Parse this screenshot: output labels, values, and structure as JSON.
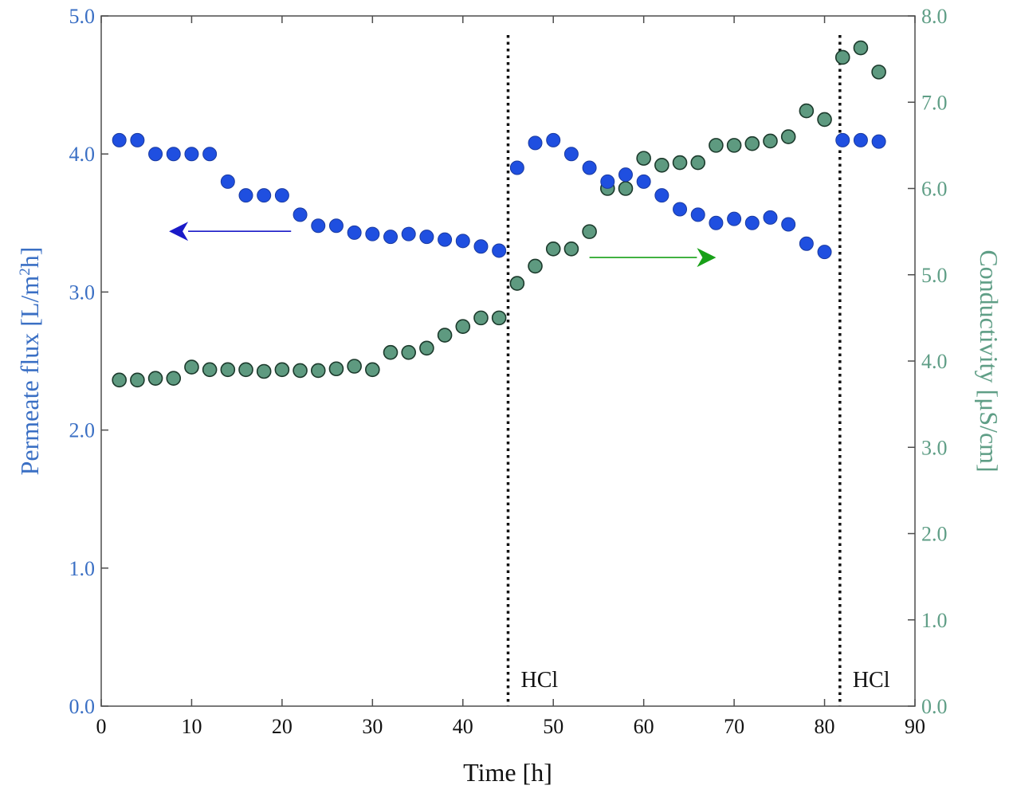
{
  "chart_data": {
    "type": "scatter",
    "title": "",
    "xlabel": "Time [h]",
    "xlim": [
      0,
      90
    ],
    "xticks": [
      0,
      10,
      20,
      30,
      40,
      50,
      60,
      70,
      80,
      90
    ],
    "xtick_labels": [
      "0",
      "10",
      "20",
      "30",
      "40",
      "50",
      "60",
      "70",
      "80",
      "90"
    ],
    "y_left": {
      "label_main": "Permeate flux [L/m",
      "label_sup": "2",
      "label_end": "h]",
      "ylim": [
        0,
        5
      ],
      "ticks": [
        0,
        1,
        2,
        3,
        4,
        5
      ],
      "tick_labels": [
        "0.0",
        "1.0",
        "2.0",
        "3.0",
        "4.0",
        "5.0"
      ],
      "color": "#3a6fc4"
    },
    "y_right": {
      "label": "Conductivity [μS/cm]",
      "ylim": [
        0,
        8
      ],
      "ticks": [
        0,
        1,
        2,
        3,
        4,
        5,
        6,
        7,
        8
      ],
      "tick_labels": [
        "0.0",
        "1.0",
        "2.0",
        "3.0",
        "4.0",
        "5.0",
        "6.0",
        "7.0",
        "8.0"
      ],
      "color": "#5f9e86"
    },
    "series": [
      {
        "name": "Permeate flux",
        "axis": "left",
        "marker_color": "#1f4fe0",
        "x": [
          2,
          4,
          6,
          8,
          10,
          12,
          14,
          16,
          18,
          20,
          22,
          24,
          26,
          28,
          30,
          32,
          34,
          36,
          38,
          40,
          42,
          44,
          46,
          48,
          50,
          52,
          54,
          56,
          58,
          60,
          62,
          64,
          66,
          68,
          70,
          72,
          74,
          76,
          78,
          80,
          82,
          84,
          86
        ],
        "y": [
          4.1,
          4.1,
          4.0,
          4.0,
          4.0,
          4.0,
          3.8,
          3.7,
          3.7,
          3.7,
          3.56,
          3.48,
          3.48,
          3.43,
          3.42,
          3.4,
          3.42,
          3.4,
          3.38,
          3.37,
          3.33,
          3.3,
          3.9,
          4.08,
          4.1,
          4.0,
          3.9,
          3.8,
          3.85,
          3.8,
          3.7,
          3.6,
          3.56,
          3.5,
          3.53,
          3.5,
          3.54,
          3.49,
          3.35,
          3.29,
          4.1,
          4.1,
          4.09
        ]
      },
      {
        "name": "Conductivity",
        "axis": "right",
        "marker_color": "#5e9a80",
        "x": [
          2,
          4,
          6,
          8,
          10,
          12,
          14,
          16,
          18,
          20,
          22,
          24,
          26,
          28,
          30,
          32,
          34,
          36,
          38,
          40,
          42,
          44,
          46,
          48,
          50,
          52,
          54,
          56,
          58,
          60,
          62,
          64,
          66,
          68,
          70,
          72,
          74,
          76,
          78,
          80,
          82,
          84,
          86
        ],
        "y": [
          3.78,
          3.78,
          3.8,
          3.8,
          3.93,
          3.9,
          3.9,
          3.9,
          3.88,
          3.9,
          3.89,
          3.89,
          3.91,
          3.94,
          3.9,
          4.1,
          4.1,
          4.15,
          4.3,
          4.4,
          4.5,
          4.5,
          4.9,
          5.1,
          5.3,
          5.3,
          5.5,
          6.0,
          6.0,
          6.35,
          6.27,
          6.3,
          6.3,
          6.5,
          6.5,
          6.52,
          6.55,
          6.6,
          6.9,
          6.8,
          7.52,
          7.63,
          7.35
        ]
      }
    ],
    "annotations": [
      {
        "label": "HCl",
        "x": 45
      },
      {
        "label": "HCl",
        "x": 81.7
      }
    ],
    "arrows": [
      {
        "name": "left-axis-arrow",
        "color": "#1a1ac8",
        "direction": "left",
        "axis": "left",
        "y": 3.44,
        "x_from": 21,
        "x_to": 7.5
      },
      {
        "name": "right-axis-arrow",
        "color": "#18a018",
        "direction": "right",
        "axis": "left",
        "y": 3.25,
        "x_from": 54,
        "x_to": 68
      }
    ],
    "grid": false,
    "legend": "none"
  }
}
